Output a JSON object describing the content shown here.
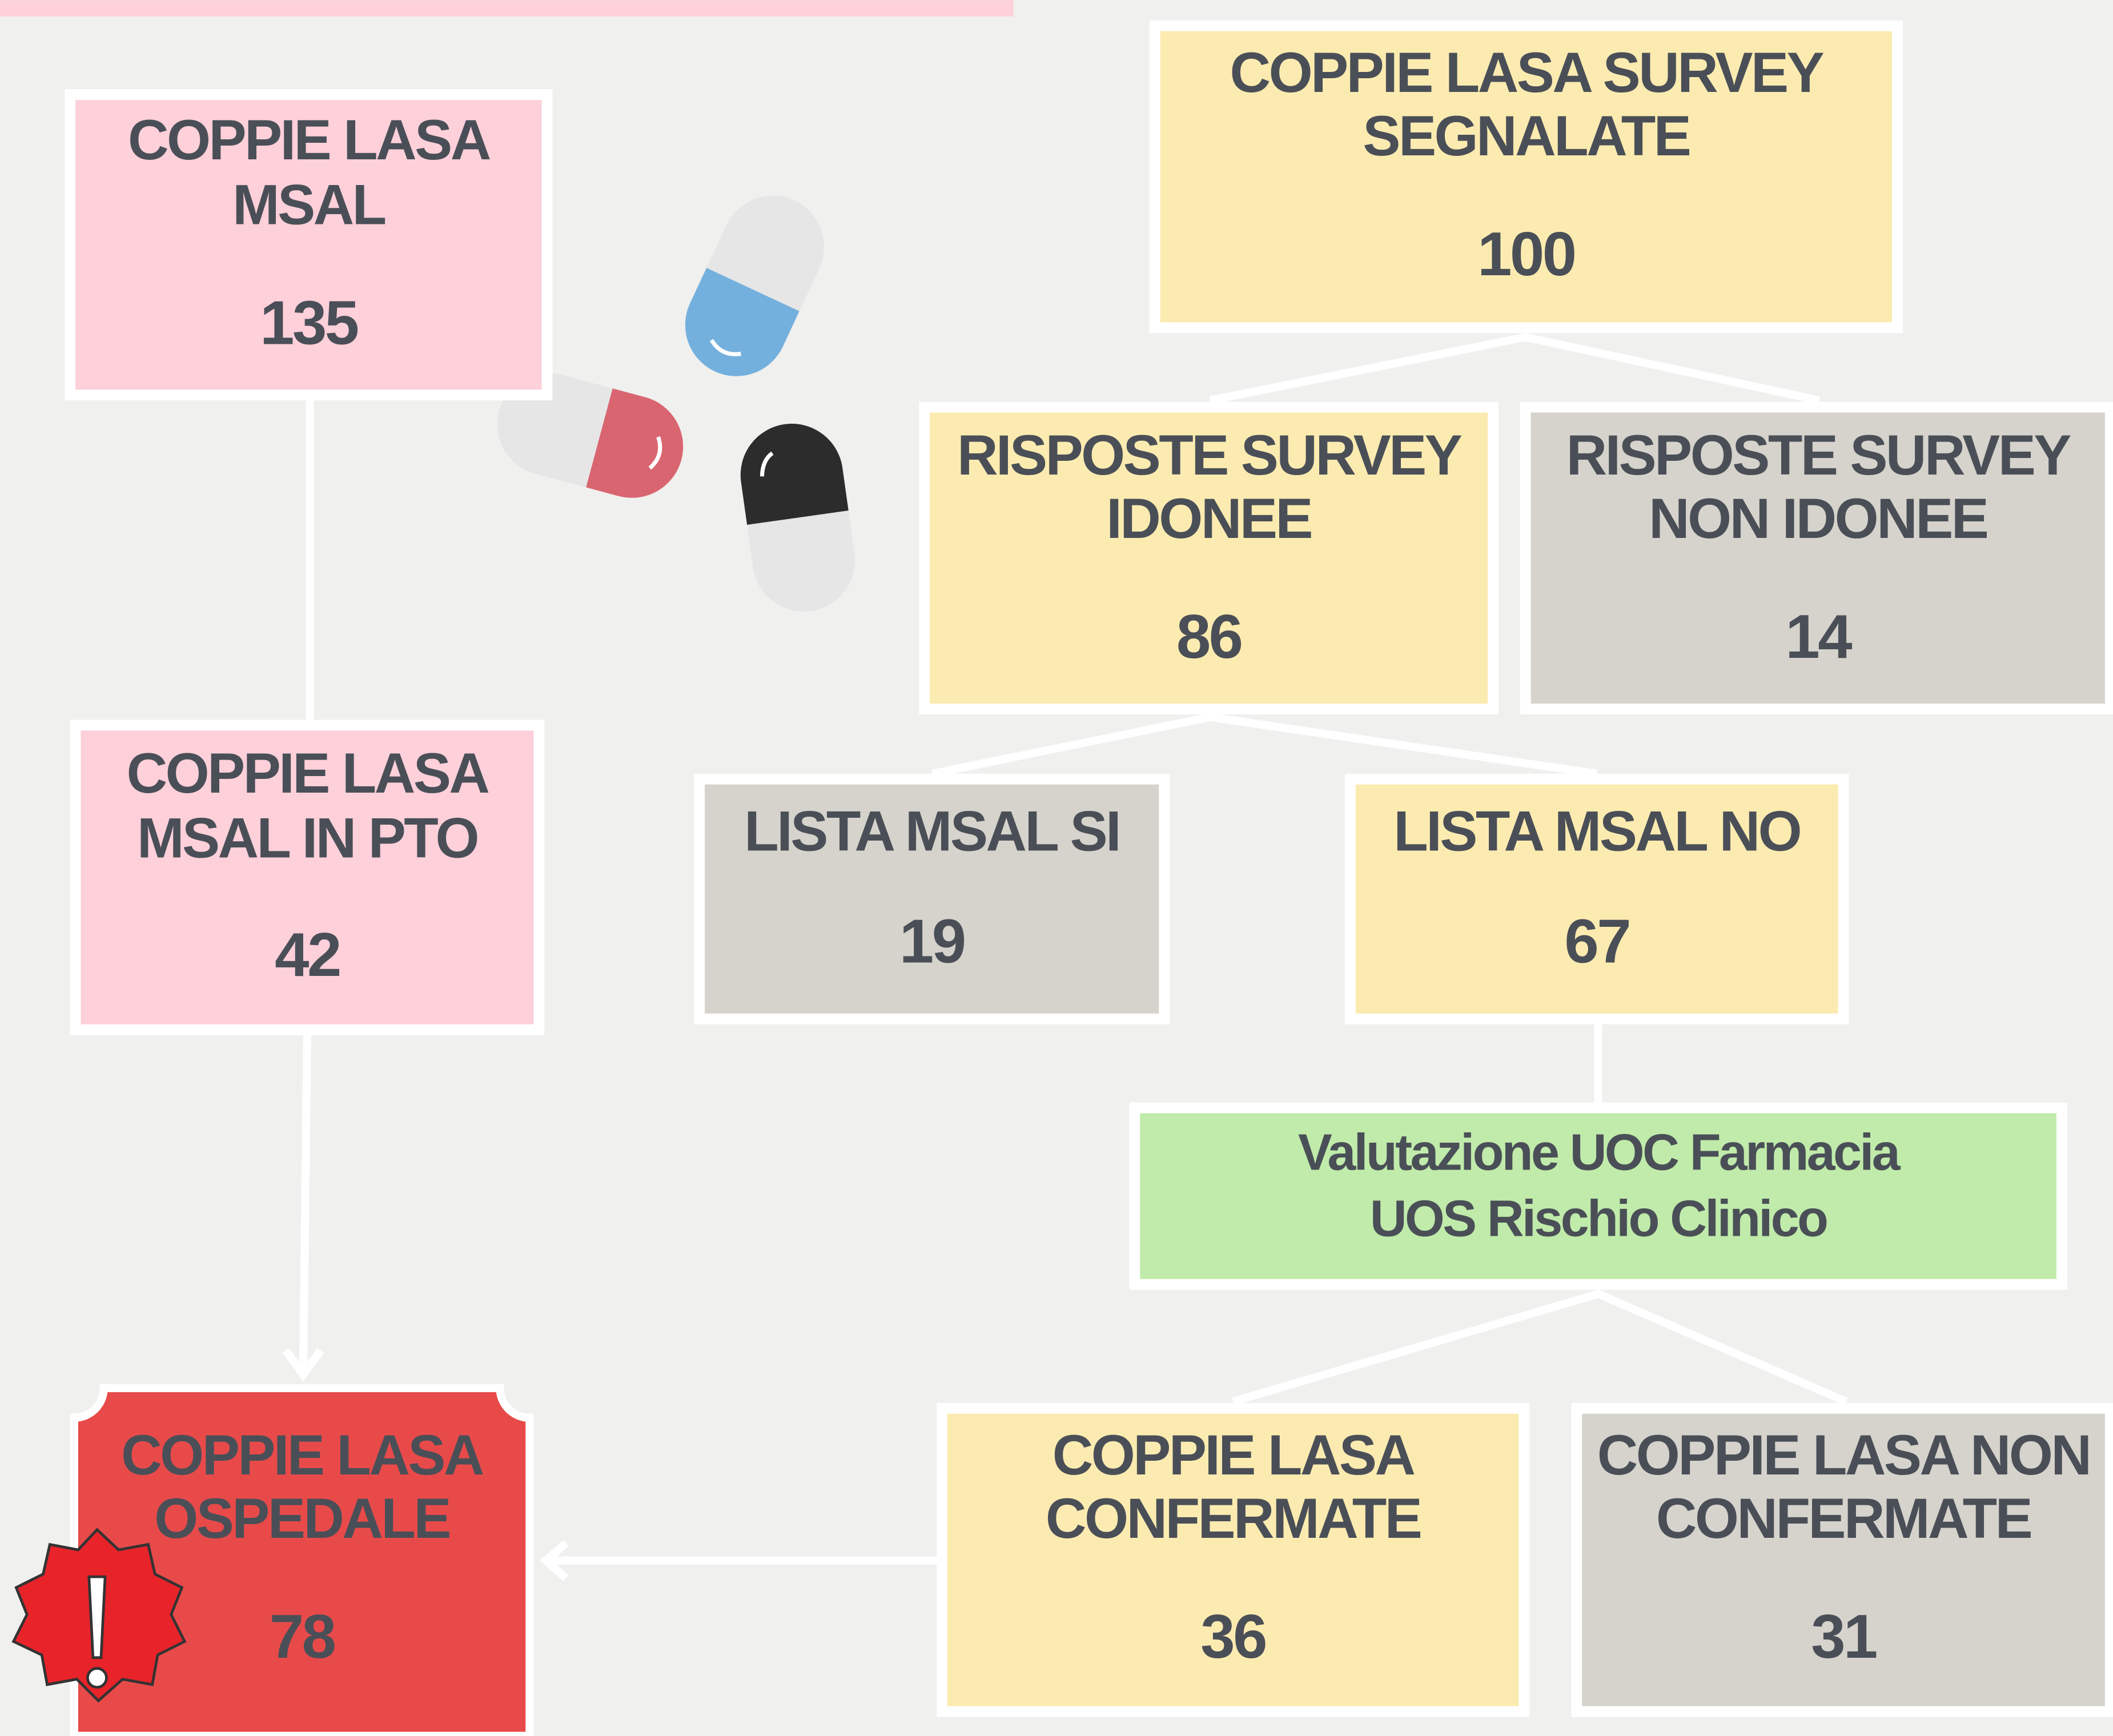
{
  "nodes": [
    {
      "lines": [
        "COPPIE LASA",
        "MSAL"
      ],
      "value": 135
    },
    {
      "lines": [
        "COPPIE LASA",
        "MSAL IN PTO"
      ],
      "value": 42
    },
    {
      "lines": [
        "COPPIE LASA",
        "OSPEDALE"
      ],
      "value": 78
    },
    {
      "lines": [
        "COPPIE LASA SURVEY",
        "SEGNALATE"
      ],
      "value": 100
    },
    {
      "lines": [
        "RISPOSTE SURVEY",
        "IDONEE"
      ],
      "value": 86
    },
    {
      "lines": [
        "RISPOSTE SURVEY",
        "NON IDONEE"
      ],
      "value": 14
    },
    {
      "lines": [
        "LISTA MSAL SI"
      ],
      "value": 19
    },
    {
      "lines": [
        "LISTA MSAL NO"
      ],
      "value": 67
    },
    {
      "lines": [
        "Valutazione UOC Farmacia",
        "UOS Rischio Clinico"
      ]
    },
    {
      "lines": [
        "COPPIE LASA",
        "CONFERMATE"
      ],
      "value": 36
    },
    {
      "lines": [
        "COPPIE LASA NON",
        "CONFERMATE"
      ],
      "value": 31
    }
  ]
}
